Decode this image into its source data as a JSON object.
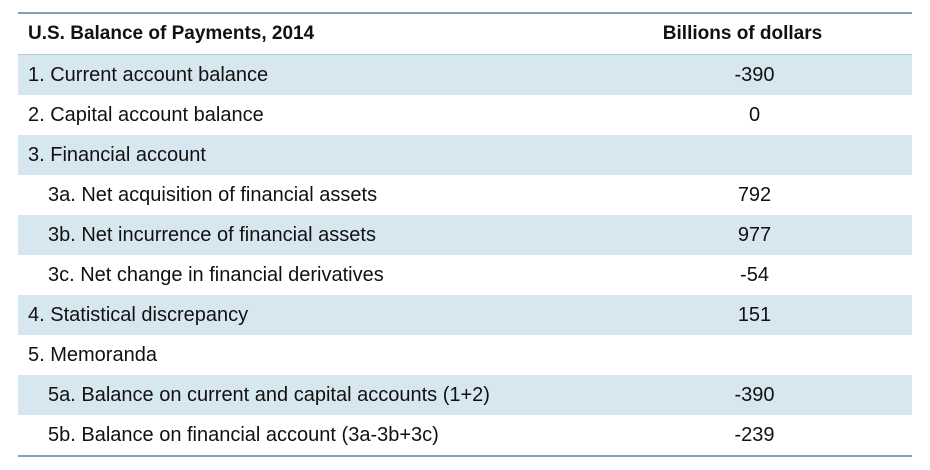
{
  "table": {
    "title": "U.S. Balance of Payments, 2014",
    "value_header": "Billions of dollars",
    "rows": [
      {
        "label": "1.  Current account balance",
        "value": "-390"
      },
      {
        "label": "2.  Capital account balance",
        "value": "0"
      },
      {
        "label": "3.   Financial account",
        "value": ""
      },
      {
        "label": "3a.  Net acquisition of financial assets",
        "value": "792"
      },
      {
        "label": "3b.  Net incurrence of financial assets",
        "value": "977"
      },
      {
        "label": "3c.  Net change in financial derivatives",
        "value": "-54"
      },
      {
        "label": "4.  Statistical discrepancy",
        "value": "151"
      },
      {
        "label": "5.  Memoranda",
        "value": ""
      },
      {
        "label": "5a.  Balance on current and capital accounts (1+2)",
        "value": "-390"
      },
      {
        "label": "5b.  Balance on financial account (3a-3b+3c)",
        "value": "-239"
      }
    ]
  },
  "colors": {
    "rule": "#7fa3b8",
    "shade": "#d7e7f0"
  }
}
